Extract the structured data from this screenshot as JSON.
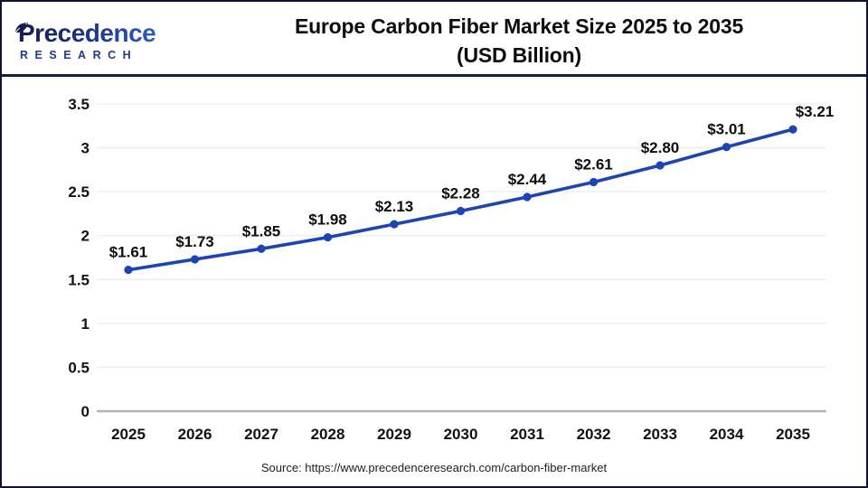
{
  "logo": {
    "name": "Precedence",
    "subtitle": "RESEARCH"
  },
  "header": {
    "title_line1": "Europe Carbon Fiber Market Size 2025 to 2035",
    "title_line2": "(USD Billion)"
  },
  "footer": {
    "source": "Source: https://www.precedenceresearch.com/carbon-fiber-market"
  },
  "colors": {
    "line": "#1c44b2",
    "point": "#1c44b2",
    "grid": "#ececec",
    "zero_axis": "#b3b3b3",
    "label_text": "#0d0d0d",
    "divider": "#151b45",
    "logo_navy": "#141c4e",
    "logo_blue": "#3d78dd"
  },
  "chart_data": {
    "type": "line",
    "title": "Europe Carbon Fiber Market Size 2025 to 2035 (USD Billion)",
    "categories": [
      "2025",
      "2026",
      "2027",
      "2028",
      "2029",
      "2030",
      "2031",
      "2032",
      "2033",
      "2034",
      "2035"
    ],
    "values": [
      1.61,
      1.73,
      1.85,
      1.98,
      2.13,
      2.28,
      2.44,
      2.61,
      2.8,
      3.01,
      3.21
    ],
    "point_labels": [
      "$1.61",
      "$1.73",
      "$1.85",
      "$1.98",
      "$2.13",
      "$2.28",
      "$2.44",
      "$2.61",
      "$2.80",
      "$3.01",
      "$3.21"
    ],
    "xlabel": "",
    "ylabel": "",
    "ylim": [
      0,
      3.5
    ],
    "yticks": [
      "0",
      "0.5",
      "1",
      "1.5",
      "2",
      "2.5",
      "3",
      "3.5"
    ],
    "grid": "horizontal",
    "legend_position": "none"
  }
}
